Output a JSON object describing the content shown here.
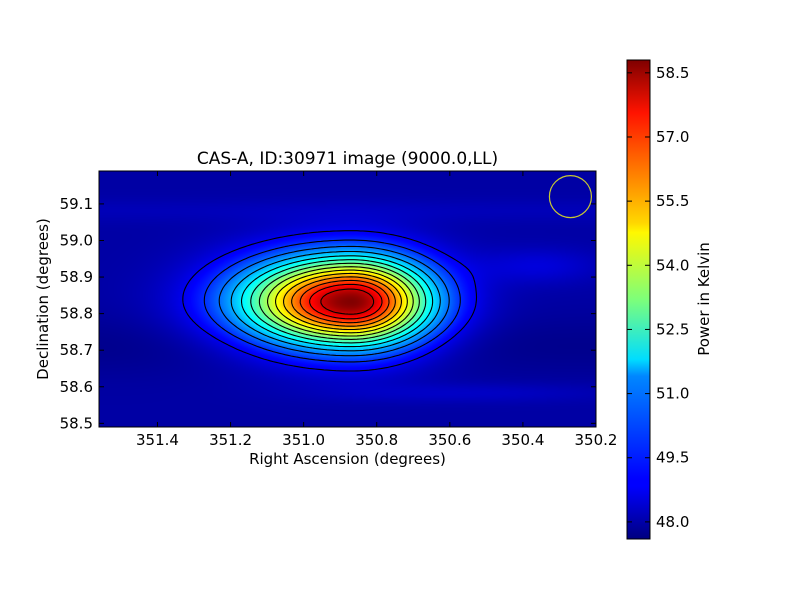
{
  "chart_data": {
    "type": "heatmap",
    "title": "CAS-A, ID:30971 image (9000.0,LL)",
    "xlabel": "Right Ascension (degrees)",
    "ylabel": "Declination (degrees)",
    "xlim": [
      351.56,
      350.2
    ],
    "ylim": [
      58.49,
      59.19
    ],
    "x_inverted": true,
    "x_ticks": [
      "351.4",
      "351.2",
      "351.0",
      "350.8",
      "350.6",
      "350.4",
      "350.2"
    ],
    "y_ticks": [
      "58.5",
      "58.6",
      "58.7",
      "58.8",
      "58.9",
      "59.0",
      "59.1"
    ],
    "colormap": "jet",
    "colorbar": {
      "label": "Power in Kelvin",
      "range": [
        47.6,
        58.8
      ],
      "ticks": [
        "48.0",
        "49.5",
        "51.0",
        "52.5",
        "54.0",
        "55.5",
        "57.0",
        "58.5"
      ]
    },
    "source": {
      "ra": 350.87,
      "dec": 58.832,
      "peak": 58.8,
      "background": 48.0
    },
    "beam_marker": {
      "ra": 350.27,
      "dec": 59.12,
      "color": "#c8c832"
    },
    "contour_levels": [
      48.8,
      49.5,
      50.2,
      50.9,
      51.6,
      52.3,
      53.0,
      53.7,
      54.4,
      55.1,
      55.8,
      56.5,
      57.2,
      57.9
    ]
  }
}
